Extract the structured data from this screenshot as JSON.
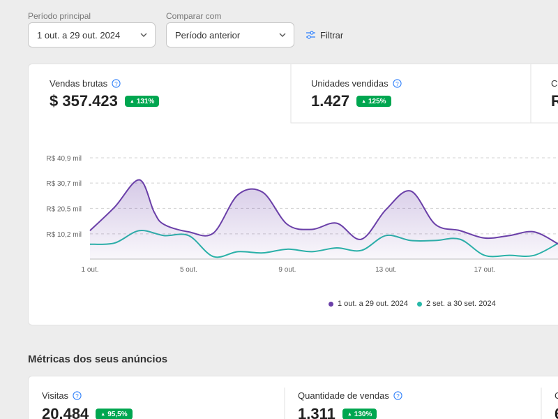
{
  "filters": {
    "main_period_label": "Período principal",
    "main_period_value": "1 out. a 29 out. 2024",
    "compare_label": "Comparar com",
    "compare_value": "Período anterior",
    "filter_button": "Filtrar"
  },
  "kpis": [
    {
      "title": "Vendas brutas",
      "value": "$ 357.423",
      "badge": "131%"
    },
    {
      "title": "Unidades vendidas",
      "value": "1.427",
      "badge": "125%"
    },
    {
      "title": "Cu",
      "value": "R"
    }
  ],
  "colors": {
    "primary_series": "#6a3fa8",
    "compare_series": "#26b8a8",
    "badge": "#00a650",
    "link_icon": "#3483fa"
  },
  "chart_data": {
    "type": "area",
    "x_tick_labels": [
      "1 out.",
      "5 out.",
      "9 out.",
      "13 out.",
      "17 out."
    ],
    "y_tick_labels": [
      "R$ 40,9 mil",
      "R$ 30,7 mil",
      "R$ 20,5 mil",
      "R$ 10,2 mil"
    ],
    "y_tick_values": [
      40.9,
      30.7,
      20.5,
      10.2
    ],
    "ylim": [
      0,
      40.9
    ],
    "x_domain": [
      1,
      20
    ],
    "grid": true,
    "legend_position": "bottom-right",
    "series": [
      {
        "name": "1 out. a 29 out. 2024",
        "x": [
          1,
          2,
          3,
          3.6,
          4,
          5,
          6,
          7,
          8,
          9,
          10,
          11,
          12,
          13,
          14,
          15,
          16,
          17,
          18,
          19,
          20
        ],
        "values": [
          11.5,
          21,
          32,
          19,
          14,
          11,
          10.5,
          26,
          27,
          14,
          12,
          14.5,
          8,
          20,
          27.5,
          14,
          11.5,
          8.5,
          9.5,
          11,
          6
        ],
        "area": true
      },
      {
        "name": "2 set. a 30 set. 2024",
        "x": [
          1,
          2,
          3,
          4,
          5,
          6,
          7,
          8,
          9,
          10,
          11,
          12,
          13,
          14,
          15,
          16,
          17,
          18,
          19,
          20
        ],
        "values": [
          6,
          6.5,
          11.5,
          9.5,
          9.5,
          1,
          3,
          2.5,
          4,
          3,
          4.5,
          3.5,
          9.5,
          7.5,
          7.5,
          8,
          1.5,
          1.5,
          1.5,
          6.5
        ]
      }
    ]
  },
  "metrics_section": {
    "title": "Métricas dos seus anúncios",
    "items": [
      {
        "title": "Visitas",
        "value": "20.484",
        "badge": "95,5%"
      },
      {
        "title": "Quantidade de vendas",
        "value": "1.311",
        "badge": "130%"
      },
      {
        "title": "C",
        "value": "6"
      }
    ]
  }
}
